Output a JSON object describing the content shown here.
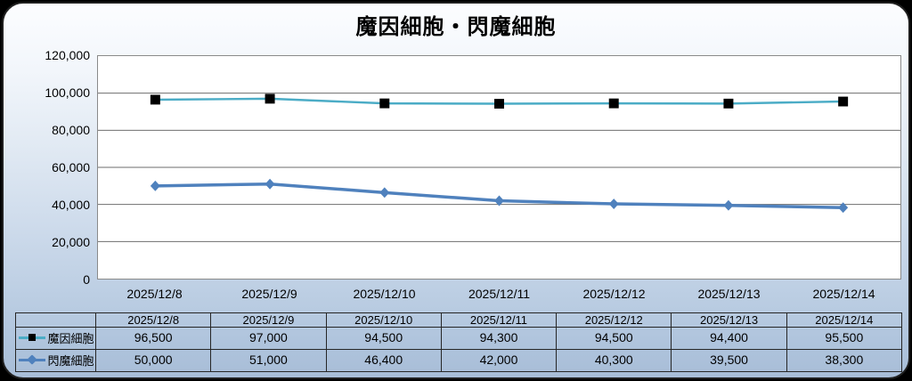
{
  "title": "魔因細胞・閃魔細胞",
  "chart_data": {
    "type": "line",
    "title": "魔因細胞・閃魔細胞",
    "categories": [
      "2025/12/8",
      "2025/12/9",
      "2025/12/10",
      "2025/12/11",
      "2025/12/12",
      "2025/12/13",
      "2025/12/14"
    ],
    "series": [
      {
        "name": "魔因細胞",
        "values": [
          96500,
          97000,
          94500,
          94300,
          94500,
          94400,
          95500
        ],
        "color": "#4BACC6",
        "line_width": 2.5,
        "marker": "square",
        "marker_color": "#000000"
      },
      {
        "name": "閃魔細胞",
        "values": [
          50000,
          51000,
          46400,
          42000,
          40300,
          39500,
          38300
        ],
        "color": "#4F81BD",
        "line_width": 3.5,
        "marker": "diamond",
        "marker_color": "#4F81BD"
      }
    ],
    "xlabel": "",
    "ylabel": "",
    "ylim": [
      0,
      120000
    ],
    "ytick_step": 20000,
    "yticks_labels": [
      "120,000",
      "100,000",
      "80,000",
      "60,000",
      "40,000",
      "20,000",
      "0"
    ],
    "grid": "horizontal",
    "grid_color": "#6E6E6E",
    "plot_bg": "#FFFFFF",
    "legend_position": "table-left"
  },
  "table": {
    "header": [
      "2025/12/8",
      "2025/12/9",
      "2025/12/10",
      "2025/12/11",
      "2025/12/12",
      "2025/12/13",
      "2025/12/14"
    ],
    "rows": [
      {
        "label": "魔因細胞",
        "values": [
          "96,500",
          "97,000",
          "94,500",
          "94,300",
          "94,500",
          "94,400",
          "95,500"
        ]
      },
      {
        "label": "閃魔細胞",
        "values": [
          "50,000",
          "51,000",
          "46,400",
          "42,000",
          "40,300",
          "39,500",
          "38,300"
        ]
      }
    ]
  },
  "colors": {
    "series1": "#4BACC6",
    "series2": "#4F81BD",
    "marker1": "#000000",
    "marker2": "#4F81BD",
    "panel_border": "#1F1F1F",
    "panel_top": "#FCFDFF",
    "panel_bottom": "#A8BDD7",
    "outside_bg": "#000000",
    "grid": "#6E6E6E",
    "table_border": "#262626"
  }
}
